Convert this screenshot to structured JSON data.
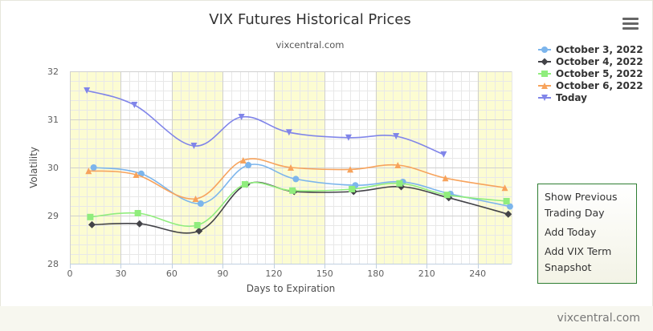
{
  "page": {
    "title": "VIX Futures Historical Prices",
    "subtitle": "vixcentral.com",
    "credit": "vixcentral.com",
    "menu_icon": "hamburger-icon"
  },
  "side_menu": {
    "items": [
      "Show Previous Trading Day",
      "Add Today",
      "Add VIX Term Snapshot"
    ]
  },
  "chart_data": {
    "type": "line",
    "title": "VIX Futures Historical Prices",
    "subtitle": "vixcentral.com",
    "xlabel": "Days to Expiration",
    "ylabel": "Volatility",
    "xlim": [
      0,
      260
    ],
    "ylim": [
      28,
      32
    ],
    "x_ticks": [
      0,
      30,
      60,
      90,
      120,
      150,
      180,
      210,
      240
    ],
    "y_ticks": [
      28,
      29,
      30,
      31,
      32
    ],
    "grid": true,
    "legend_position": "top-right",
    "shaded_x_bands": [
      [
        0,
        30
      ],
      [
        60,
        90
      ],
      [
        120,
        150
      ],
      [
        180,
        210
      ],
      [
        240,
        260
      ]
    ],
    "series": [
      {
        "name": "October 3, 2022",
        "color": "#7cb5ec",
        "marker": "circle",
        "points": [
          [
            14,
            30.0
          ],
          [
            42,
            29.87
          ],
          [
            77,
            29.25
          ],
          [
            105,
            30.05
          ],
          [
            133,
            29.76
          ],
          [
            168,
            29.63
          ],
          [
            196,
            29.7
          ],
          [
            224,
            29.45
          ],
          [
            259,
            29.19
          ]
        ]
      },
      {
        "name": "October 4, 2022",
        "color": "#434348",
        "marker": "diamond",
        "points": [
          [
            13,
            28.81
          ],
          [
            41,
            28.83
          ],
          [
            76,
            28.68
          ],
          [
            104,
            29.65
          ],
          [
            132,
            29.5
          ],
          [
            167,
            29.5
          ],
          [
            195,
            29.6
          ],
          [
            223,
            29.37
          ],
          [
            258,
            29.03
          ]
        ]
      },
      {
        "name": "October 5, 2022",
        "color": "#90ed7d",
        "marker": "square",
        "points": [
          [
            12,
            28.97
          ],
          [
            40,
            29.05
          ],
          [
            75,
            28.8
          ],
          [
            103,
            29.65
          ],
          [
            131,
            29.52
          ],
          [
            166,
            29.55
          ],
          [
            194,
            29.67
          ],
          [
            222,
            29.43
          ],
          [
            257,
            29.3
          ]
        ]
      },
      {
        "name": "October 6, 2022",
        "color": "#f7a35c",
        "marker": "triangle",
        "points": [
          [
            11,
            29.93
          ],
          [
            39,
            29.85
          ],
          [
            74,
            29.35
          ],
          [
            102,
            30.15
          ],
          [
            130,
            30.0
          ],
          [
            165,
            29.96
          ],
          [
            193,
            30.05
          ],
          [
            221,
            29.78
          ],
          [
            256,
            29.58
          ]
        ]
      },
      {
        "name": "Today",
        "color": "#8085e9",
        "marker": "triangle-down",
        "points": [
          [
            10,
            31.6
          ],
          [
            38,
            31.3
          ],
          [
            73,
            30.45
          ],
          [
            101,
            31.05
          ],
          [
            129,
            30.73
          ],
          [
            164,
            30.62
          ],
          [
            192,
            30.65
          ],
          [
            220,
            30.27
          ]
        ]
      }
    ]
  }
}
